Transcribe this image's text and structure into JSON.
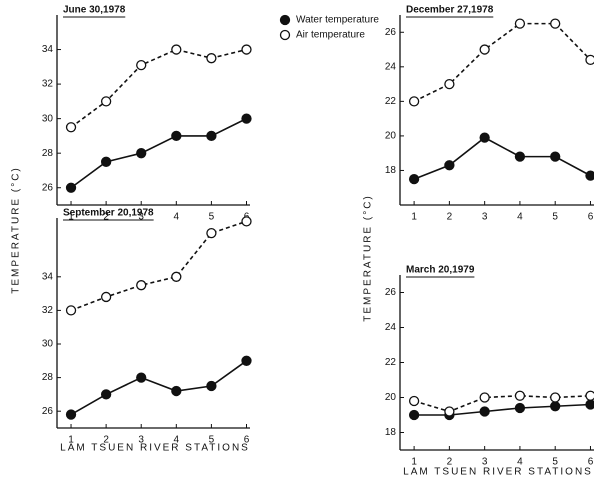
{
  "chart_data": [
    {
      "type": "line",
      "title": "June 30,1978",
      "ylabel": "TEMPERATURE (°C)",
      "x": [
        1,
        2,
        3,
        4,
        5,
        6
      ],
      "xlim": [
        0.6,
        6.1
      ],
      "xticks": [
        1,
        2,
        3,
        4,
        5,
        6
      ],
      "ylim": [
        25,
        36
      ],
      "yticks": [
        26,
        28,
        30,
        32,
        34
      ],
      "series": [
        {
          "name": "Water temperature",
          "color": "#111111",
          "marker": "filled",
          "line": "solid",
          "values": [
            26,
            27.5,
            28,
            29,
            29,
            30
          ]
        },
        {
          "name": "Air temperature",
          "color": "#111111",
          "marker": "open",
          "line": "dashed",
          "values": [
            29.5,
            31,
            33.1,
            34,
            33.5,
            34
          ]
        }
      ]
    },
    {
      "type": "line",
      "title": "September 20,1978",
      "xlabel": "LAM TSUEN RIVER STATIONS",
      "x": [
        1,
        2,
        3,
        4,
        5,
        6
      ],
      "xlim": [
        0.6,
        6.1
      ],
      "xticks": [
        1,
        2,
        3,
        4,
        5,
        6
      ],
      "ylim": [
        25,
        37.5
      ],
      "yticks": [
        26,
        28,
        30,
        32,
        34
      ],
      "series": [
        {
          "color": "#111111",
          "marker": "filled",
          "line": "solid",
          "values": [
            25.8,
            27,
            28,
            27.2,
            27.5,
            29
          ]
        },
        {
          "color": "#111111",
          "marker": "open",
          "line": "dashed",
          "values": [
            32,
            32.8,
            33.5,
            34,
            36.6,
            37.3
          ]
        }
      ]
    },
    {
      "type": "line",
      "title": "December 27,1978",
      "ylabel": "TEMPERATURE (°C)",
      "x": [
        1,
        2,
        3,
        4,
        5,
        6
      ],
      "xlim": [
        0.6,
        6.1
      ],
      "xticks": [
        1,
        2,
        3,
        4,
        5,
        6
      ],
      "ylim": [
        16,
        27
      ],
      "yticks": [
        18,
        20,
        22,
        24,
        26
      ],
      "series": [
        {
          "color": "#111111",
          "marker": "filled",
          "line": "solid",
          "values": [
            17.5,
            18.3,
            19.9,
            18.8,
            18.8,
            17.7
          ]
        },
        {
          "color": "#111111",
          "marker": "open",
          "line": "dashed",
          "values": [
            22,
            23,
            25,
            26.5,
            26.5,
            24.4
          ]
        }
      ]
    },
    {
      "type": "line",
      "title": "March 20,1979",
      "xlabel": "LAM TSUEN RIVER STATIONS",
      "x": [
        1,
        2,
        3,
        4,
        5,
        6
      ],
      "xlim": [
        0.6,
        6.1
      ],
      "xticks": [
        1,
        2,
        3,
        4,
        5,
        6
      ],
      "ylim": [
        17,
        27
      ],
      "yticks": [
        18,
        20,
        22,
        24,
        26
      ],
      "series": [
        {
          "color": "#111111",
          "marker": "filled",
          "line": "solid",
          "values": [
            19,
            19,
            19.2,
            19.4,
            19.5,
            19.6
          ]
        },
        {
          "color": "#111111",
          "marker": "open",
          "line": "dashed",
          "values": [
            19.8,
            19.2,
            20,
            20.1,
            20,
            20.1
          ]
        }
      ]
    }
  ]
}
